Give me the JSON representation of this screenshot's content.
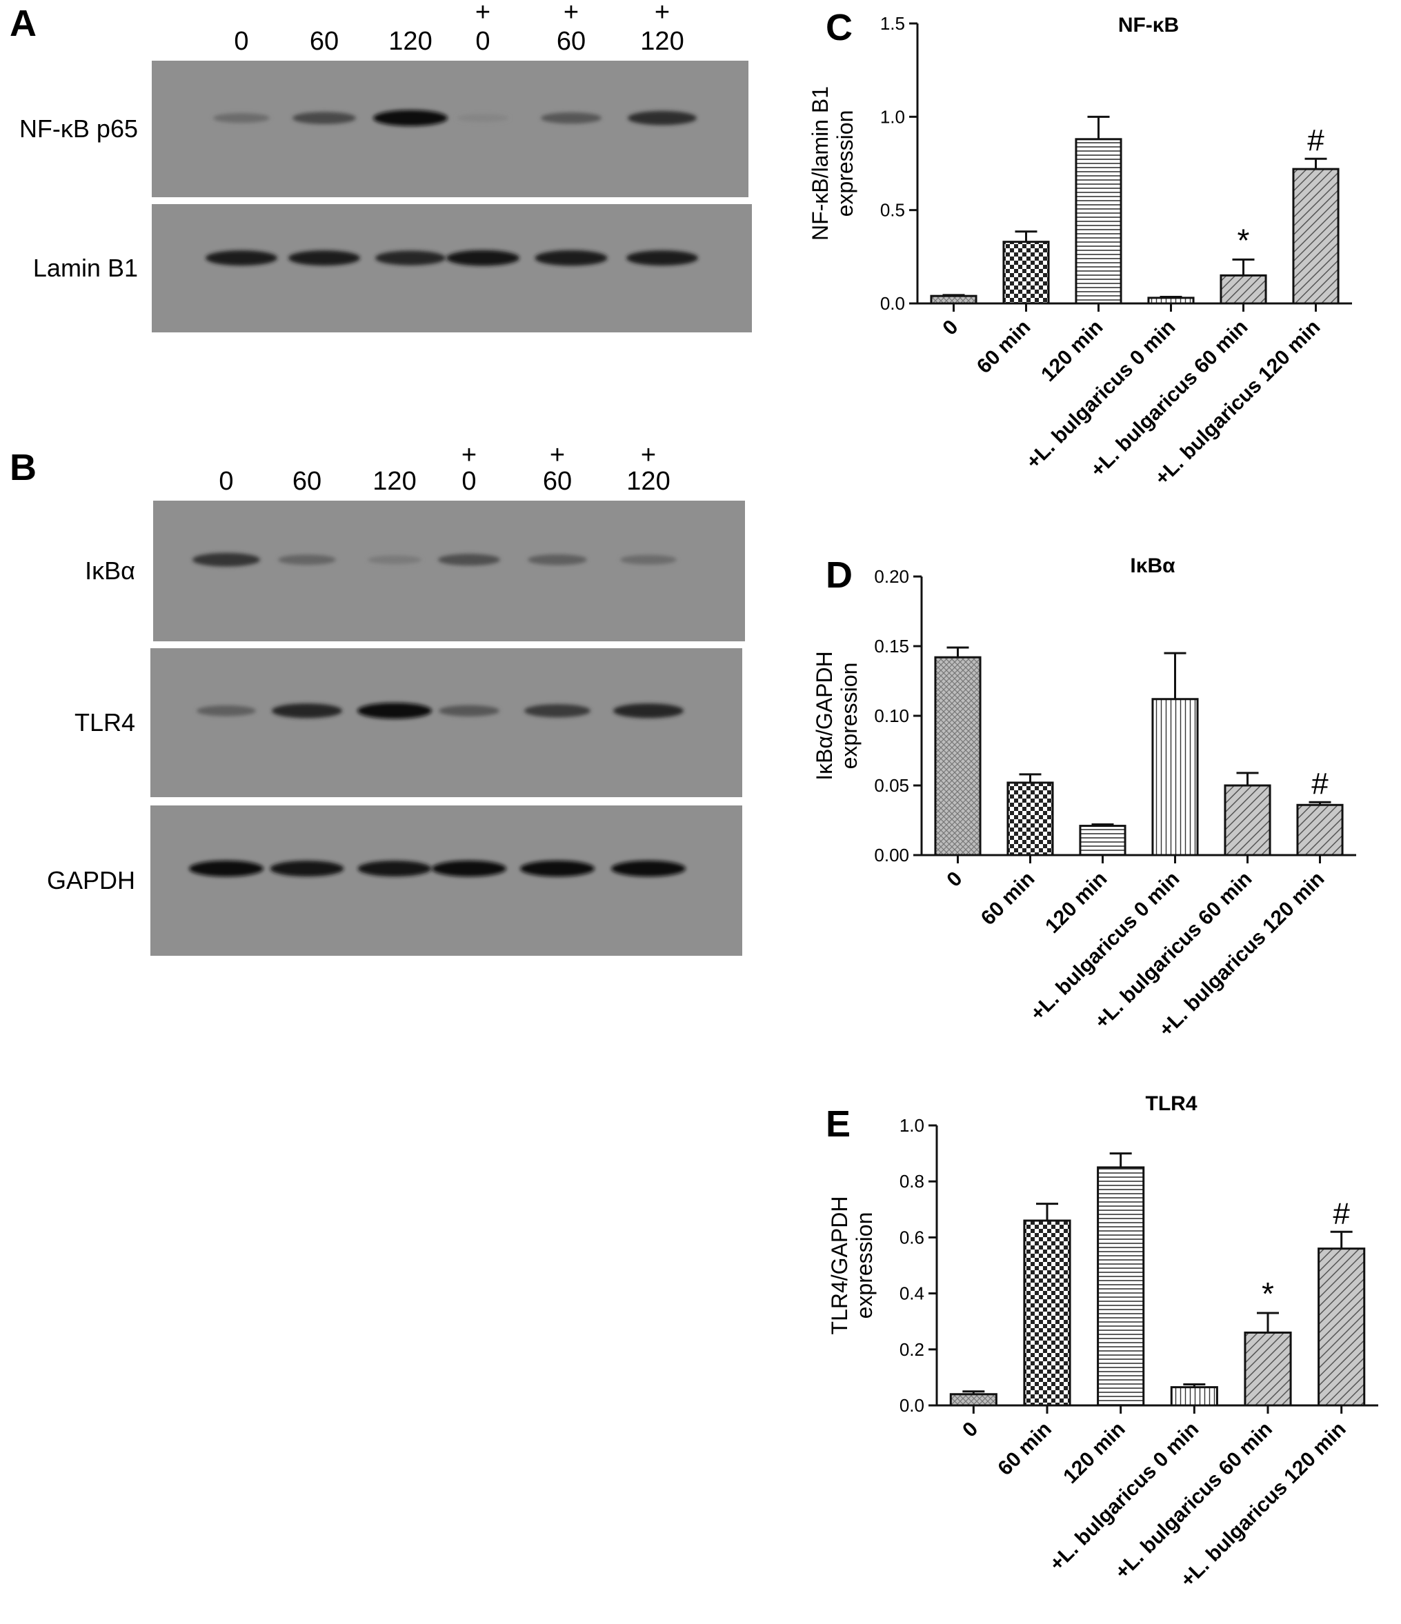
{
  "panels": {
    "A": {
      "letter": "A",
      "lane_labels": [
        {
          "plus": "",
          "time": "0"
        },
        {
          "plus": "",
          "time": "60"
        },
        {
          "plus": "",
          "time": "120"
        },
        {
          "plus": "+",
          "time": "0"
        },
        {
          "plus": "+",
          "time": "60"
        },
        {
          "plus": "+",
          "time": "120"
        }
      ],
      "blots": [
        {
          "label": "NF-κB p65",
          "intensities": [
            0.3,
            0.55,
            0.95,
            0.12,
            0.45,
            0.75
          ]
        },
        {
          "label": "Lamin B1",
          "intensities": [
            0.85,
            0.85,
            0.8,
            0.9,
            0.88,
            0.85
          ]
        }
      ]
    },
    "B": {
      "letter": "B",
      "lane_labels": [
        {
          "plus": "",
          "time": "0"
        },
        {
          "plus": "",
          "time": "60"
        },
        {
          "plus": "",
          "time": "120"
        },
        {
          "plus": "+",
          "time": "0"
        },
        {
          "plus": "+",
          "time": "60"
        },
        {
          "plus": "+",
          "time": "120"
        }
      ],
      "blots": [
        {
          "label": "IκBα",
          "intensities": [
            0.7,
            0.35,
            0.2,
            0.5,
            0.4,
            0.3
          ]
        },
        {
          "label": "TLR4",
          "intensities": [
            0.4,
            0.8,
            0.95,
            0.45,
            0.65,
            0.8
          ]
        },
        {
          "label": "GAPDH",
          "intensities": [
            0.95,
            0.92,
            0.92,
            0.95,
            0.95,
            0.95
          ]
        }
      ]
    }
  },
  "chart_data": [
    {
      "panel": "C",
      "type": "bar",
      "title": "NF-κB",
      "ylabel_lines": [
        "NF-κB/lamin B1",
        "expression"
      ],
      "categories": [
        "0",
        "60 min",
        "120 min",
        "+L. bulgaricus 0 min",
        "+L. bulgaricus 60 min",
        "+L. bulgaricus 120 min"
      ],
      "values": [
        0.04,
        0.33,
        0.88,
        0.03,
        0.15,
        0.72
      ],
      "errors": [
        0.005,
        0.055,
        0.12,
        0.005,
        0.085,
        0.055
      ],
      "annotations": [
        "",
        "",
        "",
        "",
        "*",
        "#"
      ],
      "ylim": [
        0,
        1.5
      ],
      "yticks": [
        "0.0",
        "0.5",
        "1.0",
        "1.5"
      ],
      "patterns": [
        "cross",
        "check",
        "hlines",
        "vlines",
        "diag",
        "diag"
      ]
    },
    {
      "panel": "D",
      "type": "bar",
      "title": "IκBα",
      "ylabel_lines": [
        "IκBα/GAPDH",
        "expression"
      ],
      "categories": [
        "0",
        "60 min",
        "120 min",
        "+L. bulgaricus 0 min",
        "+L. bulgaricus 60 min",
        "+L. bulgaricus 120 min"
      ],
      "values": [
        0.142,
        0.052,
        0.021,
        0.112,
        0.05,
        0.036
      ],
      "errors": [
        0.007,
        0.006,
        0.001,
        0.033,
        0.009,
        0.002
      ],
      "annotations": [
        "",
        "",
        "",
        "",
        "",
        "#"
      ],
      "ylim": [
        0,
        0.2
      ],
      "yticks": [
        "0.00",
        "0.05",
        "0.10",
        "0.15",
        "0.20"
      ],
      "patterns": [
        "cross",
        "check",
        "hlines",
        "vlines",
        "diag",
        "diag"
      ]
    },
    {
      "panel": "E",
      "type": "bar",
      "title": "TLR4",
      "ylabel_lines": [
        "TLR4/GAPDH",
        "expression"
      ],
      "categories": [
        "0",
        "60 min",
        "120 min",
        "+L. bulgaricus 0 min",
        "+L. bulgaricus 60 min",
        "+L. bulgaricus 120 min"
      ],
      "values": [
        0.04,
        0.66,
        0.85,
        0.065,
        0.26,
        0.56
      ],
      "errors": [
        0.01,
        0.06,
        0.05,
        0.01,
        0.07,
        0.06
      ],
      "annotations": [
        "",
        "",
        "",
        "",
        "*",
        "#"
      ],
      "ylim": [
        0,
        1.0
      ],
      "yticks": [
        "0.0",
        "0.2",
        "0.4",
        "0.6",
        "0.8",
        "1.0"
      ],
      "patterns": [
        "cross",
        "check",
        "hlines",
        "vlines",
        "diag",
        "diag"
      ]
    }
  ]
}
